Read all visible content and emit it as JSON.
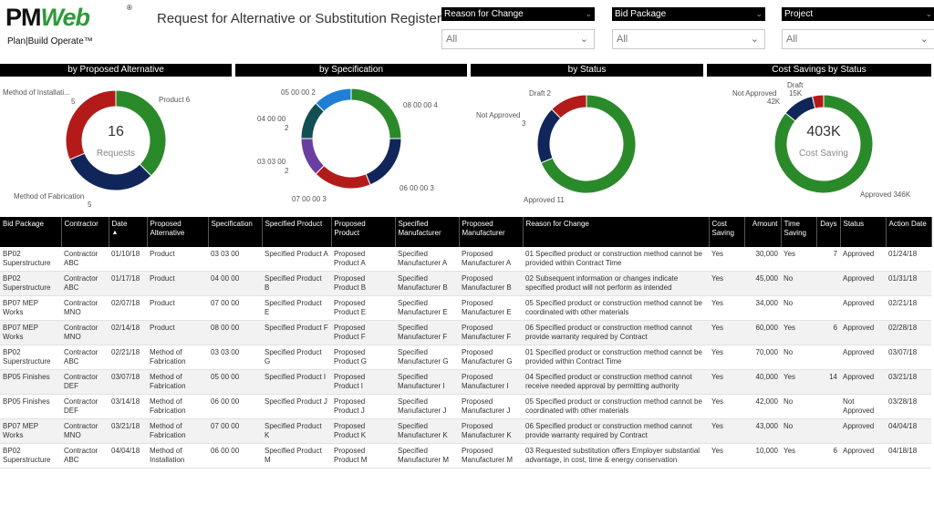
{
  "logo": {
    "word_a": "PM",
    "word_b": "Web",
    "reg": "®",
    "tagline": "Plan|Build Operate™"
  },
  "title": "Request for Alternative or Substitution Register",
  "filters": [
    {
      "label": "Reason for Change",
      "value": "All"
    },
    {
      "label": "Bid Package",
      "value": "All"
    },
    {
      "label": "Project",
      "value": "All"
    }
  ],
  "panels": {
    "alternative": "by Proposed Alternative",
    "specification": "by Specification",
    "status": "by Status",
    "savings": "Cost Savings by Status"
  },
  "center": {
    "alt_value": "16",
    "alt_caption": "Requests",
    "sav_value": "403K",
    "sav_caption": "Cost Saving"
  },
  "labels": {
    "alt": {
      "installation": "Method of Installati...",
      "installation_val": "5",
      "product": "Product 6",
      "fabrication": "Method of Fabrication",
      "fabrication_val": "5"
    },
    "spec": {
      "s050002": "05 00 00 2",
      "s080004": "08 00 00 4",
      "s040000": "04 00 00",
      "s040000_val": "2",
      "s030300": "03 03 00",
      "s030300_val": "2",
      "s060000": "06 00 00 3",
      "s070000": "07 00 00 3"
    },
    "status": {
      "draft": "Draft 2",
      "notapproved": "Not Approved",
      "notapproved_val": "3",
      "approved": "Approved 11"
    },
    "sav": {
      "draft": "Draft",
      "draft_val": "15K",
      "notapproved": "Not Approved",
      "notapproved_val": "42K",
      "approved": "Approved 346K"
    }
  },
  "colors": {
    "green": "#2a8a2a",
    "navy": "#10265a",
    "red": "#b31b1b",
    "blue": "#1f7fd6",
    "teal": "#114f55",
    "purple": "#6a3ea0"
  },
  "chart_data": [
    {
      "type": "pie",
      "title": "by Proposed Alternative",
      "categories": [
        "Product",
        "Method of Fabrication",
        "Method of Installation"
      ],
      "values": [
        6,
        5,
        5
      ],
      "colors": [
        "#2a8a2a",
        "#10265a",
        "#b31b1b"
      ]
    },
    {
      "type": "pie",
      "title": "by Specification",
      "categories": [
        "08 00 00",
        "06 00 00",
        "07 00 00",
        "03 03 00",
        "04 00 00",
        "05 00 00"
      ],
      "values": [
        4,
        3,
        3,
        2,
        2,
        2
      ],
      "colors": [
        "#2a8a2a",
        "#10265a",
        "#b31b1b",
        "#6a3ea0",
        "#114f55",
        "#1f7fd6"
      ]
    },
    {
      "type": "pie",
      "title": "by Status",
      "categories": [
        "Approved",
        "Not Approved",
        "Draft"
      ],
      "values": [
        11,
        3,
        2
      ],
      "colors": [
        "#2a8a2a",
        "#10265a",
        "#b31b1b"
      ]
    },
    {
      "type": "pie",
      "title": "Cost Savings by Status",
      "categories": [
        "Approved",
        "Not Approved",
        "Draft"
      ],
      "values": [
        346,
        42,
        15
      ],
      "colors": [
        "#2a8a2a",
        "#10265a",
        "#b31b1b"
      ]
    }
  ],
  "table": {
    "headers": [
      "Bid Package",
      "Contractor",
      "Date",
      "Proposed Alternative",
      "Specification",
      "Specified Product",
      "Proposed Product",
      "Specified Manufacturer",
      "Proposed Manufacturer",
      "Reason for Change",
      "Cost Saving",
      "Amount",
      "Time Saving",
      "Days",
      "Status",
      "Action Date"
    ],
    "sort_indicator": "▲",
    "rows": [
      [
        "BP02 Superstructure",
        "Contractor ABC",
        "01/10/18",
        "Product",
        "03 03 00",
        "Specified Product A",
        "Proposed Product A",
        "Specified Manufacturer A",
        "Proposed Manufacturer A",
        "01 Specified product or construction method cannot be provided within Contract Time",
        "Yes",
        "30,000",
        "Yes",
        "7",
        "Approved",
        "01/24/18"
      ],
      [
        "BP02 Superstructure",
        "Contractor ABC",
        "01/17/18",
        "Product",
        "04 00 00",
        "Specified Product B",
        "Proposed Product B",
        "Specified Manufacturer B",
        "Proposed Manufacturer B",
        "02 Subsequent information or changes indicate specified product will not perform as intended",
        "Yes",
        "45,000",
        "No",
        "",
        "Approved",
        "01/31/18"
      ],
      [
        "BP07 MEP Works",
        "Contractor MNO",
        "02/07/18",
        "Product",
        "07 00 00",
        "Specified Product E",
        "Proposed Product E",
        "Specified Manufacturer E",
        "Proposed Manufacturer E",
        "05 Specified product or construction method cannot be coordinated with other materials",
        "Yes",
        "34,000",
        "No",
        "",
        "Approved",
        "02/21/18"
      ],
      [
        "BP07 MEP Works",
        "Contractor MNO",
        "02/14/18",
        "Product",
        "08 00 00",
        "Specified Product F",
        "Proposed Product F",
        "Specified Manufacturer F",
        "Proposed Manufacturer F",
        "06 Specified product or construction method cannot provide warranty required by Contract",
        "Yes",
        "60,000",
        "Yes",
        "6",
        "Approved",
        "02/28/18"
      ],
      [
        "BP02 Superstructure",
        "Contractor ABC",
        "02/21/18",
        "Method of Fabrication",
        "03 03 00",
        "Specified Product G",
        "Proposed Product G",
        "Specified Manufacturer G",
        "Proposed Manufacturer G",
        "01 Specified product or construction method cannot be provided within Contract Time",
        "Yes",
        "70,000",
        "No",
        "",
        "Approved",
        "03/07/18"
      ],
      [
        "BP05 Finishes",
        "Contractor DEF",
        "03/07/18",
        "Method of Fabrication",
        "05 00 00",
        "Specified Product I",
        "Proposed Product I",
        "Specified Manufacturer I",
        "Proposed Manufacturer I",
        "04 Specified product or construction method cannot receive needed approval by permitting authority",
        "Yes",
        "40,000",
        "Yes",
        "14",
        "Approved",
        "03/21/18"
      ],
      [
        "BP05 Finishes",
        "Contractor DEF",
        "03/14/18",
        "Method of Fabrication",
        "06 00 00",
        "Specified Product J",
        "Proposed Product J",
        "Specified Manufacturer J",
        "Proposed Manufacturer J",
        "05 Specified product or construction method cannot be coordinated with other materials",
        "Yes",
        "42,000",
        "No",
        "",
        "Not Approved",
        "03/28/18"
      ],
      [
        "BP07 MEP Works",
        "Contractor MNO",
        "03/21/18",
        "Method of Fabrication",
        "07 00 00",
        "Specified Product K",
        "Proposed Product K",
        "Specified Manufacturer K",
        "Proposed Manufacturer K",
        "06 Specified product or construction method cannot provide warranty required by Contract",
        "Yes",
        "43,000",
        "No",
        "",
        "Approved",
        "04/04/18"
      ],
      [
        "BP02 Superstructure",
        "Contractor ABC",
        "04/04/18",
        "Method of Installation",
        "06 00 00",
        "Specified Product M",
        "Proposed Product M",
        "Specified Manufacturer M",
        "Proposed Manufacturer M",
        "03 Requested substitution offers Employer substantial advantage, in cost, time & energy conservation",
        "Yes",
        "10,000",
        "Yes",
        "6",
        "Approved",
        "04/18/18"
      ]
    ]
  }
}
